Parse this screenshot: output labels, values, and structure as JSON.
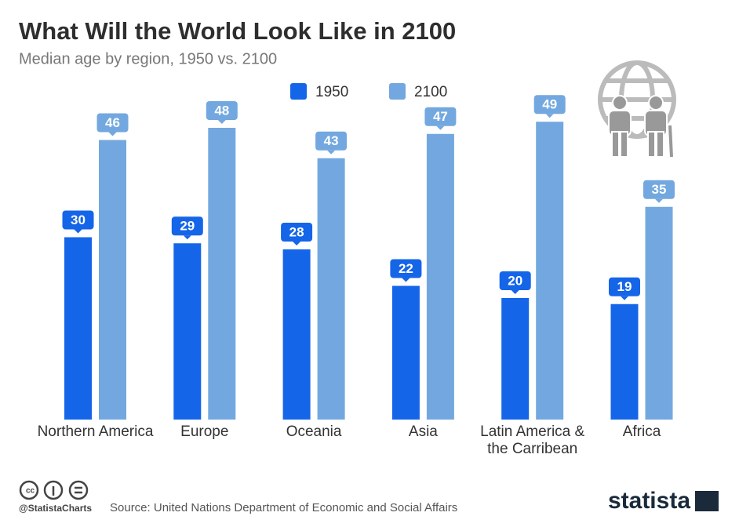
{
  "chart_data": {
    "type": "bar",
    "title": "What Will the World Look Like in 2100",
    "subtitle": "Median age by region, 1950 vs. 2100",
    "categories": [
      "Northern America",
      "Europe",
      "Oceania",
      "Asia",
      "Latin America & the Carribean",
      "Africa"
    ],
    "series": [
      {
        "name": "1950",
        "color": "#1565e8",
        "values": [
          30,
          29,
          28,
          22,
          20,
          19
        ]
      },
      {
        "name": "2100",
        "color": "#72a8df",
        "values": [
          46,
          48,
          43,
          47,
          49,
          35
        ]
      }
    ]
  },
  "footer": {
    "handle": "@StatistaCharts",
    "source": "Source: United Nations Department of Economic and Social Affairs",
    "brand": "statista"
  }
}
